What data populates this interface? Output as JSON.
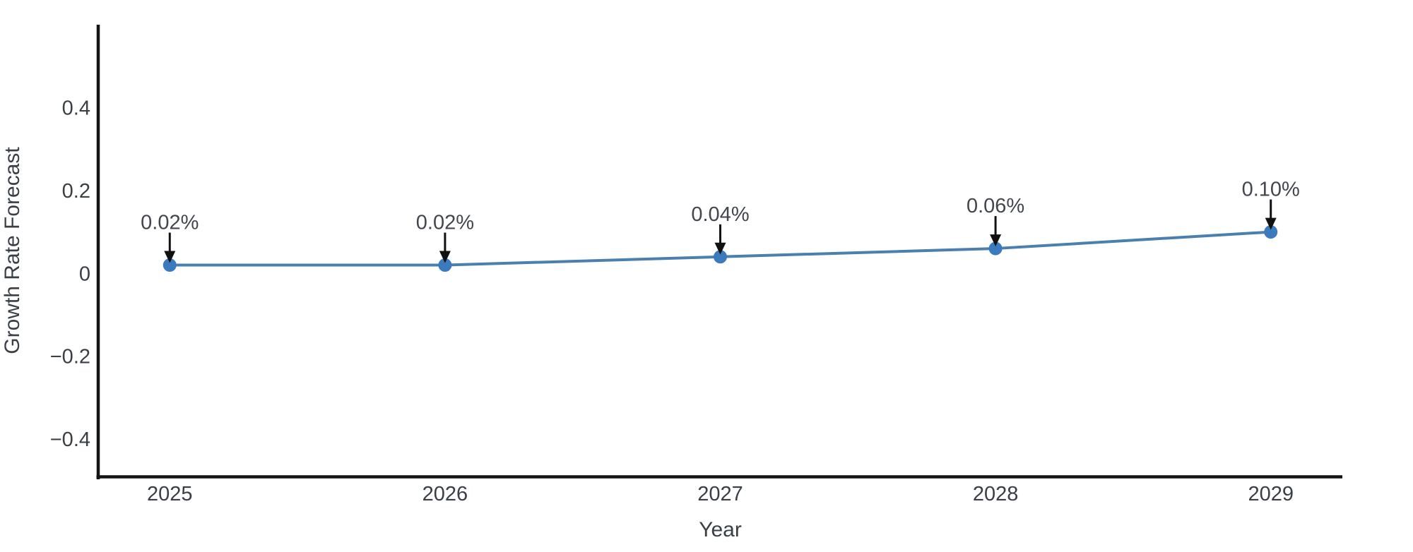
{
  "chart_data": {
    "type": "line",
    "title": "",
    "xlabel": "Year",
    "ylabel": "Growth Rate Forecast",
    "x": [
      2025,
      2026,
      2027,
      2028,
      2029
    ],
    "xtick_labels": [
      "2025",
      "2026",
      "2027",
      "2028",
      "2029"
    ],
    "series": [
      {
        "name": "Growth Rate Forecast",
        "values": [
          0.02,
          0.02,
          0.04,
          0.06,
          0.1
        ],
        "point_labels": [
          "0.02%",
          "0.02%",
          "0.04%",
          "0.06%",
          "0.10%"
        ]
      }
    ],
    "yticks": [
      {
        "value": 0.4,
        "label": "0.4"
      },
      {
        "value": 0.2,
        "label": "0.2"
      },
      {
        "value": 0,
        "label": "0"
      },
      {
        "value": -0.2,
        "label": "−0.2"
      },
      {
        "value": -0.4,
        "label": "−0.4"
      }
    ],
    "xlim": [
      2024.74,
      2029.26
    ],
    "ylim": [
      -0.49,
      0.6
    ],
    "grid": false,
    "legend": "none",
    "annotation_style": "down-arrow-to-point",
    "colors": {
      "line": "#4a7fae",
      "marker": "#3b7abc",
      "arrow": "#111111",
      "axis_spine": "#141414",
      "tick_text": "#3a3f46",
      "annotation_text": "#43474d",
      "background": "#ffffff"
    }
  }
}
